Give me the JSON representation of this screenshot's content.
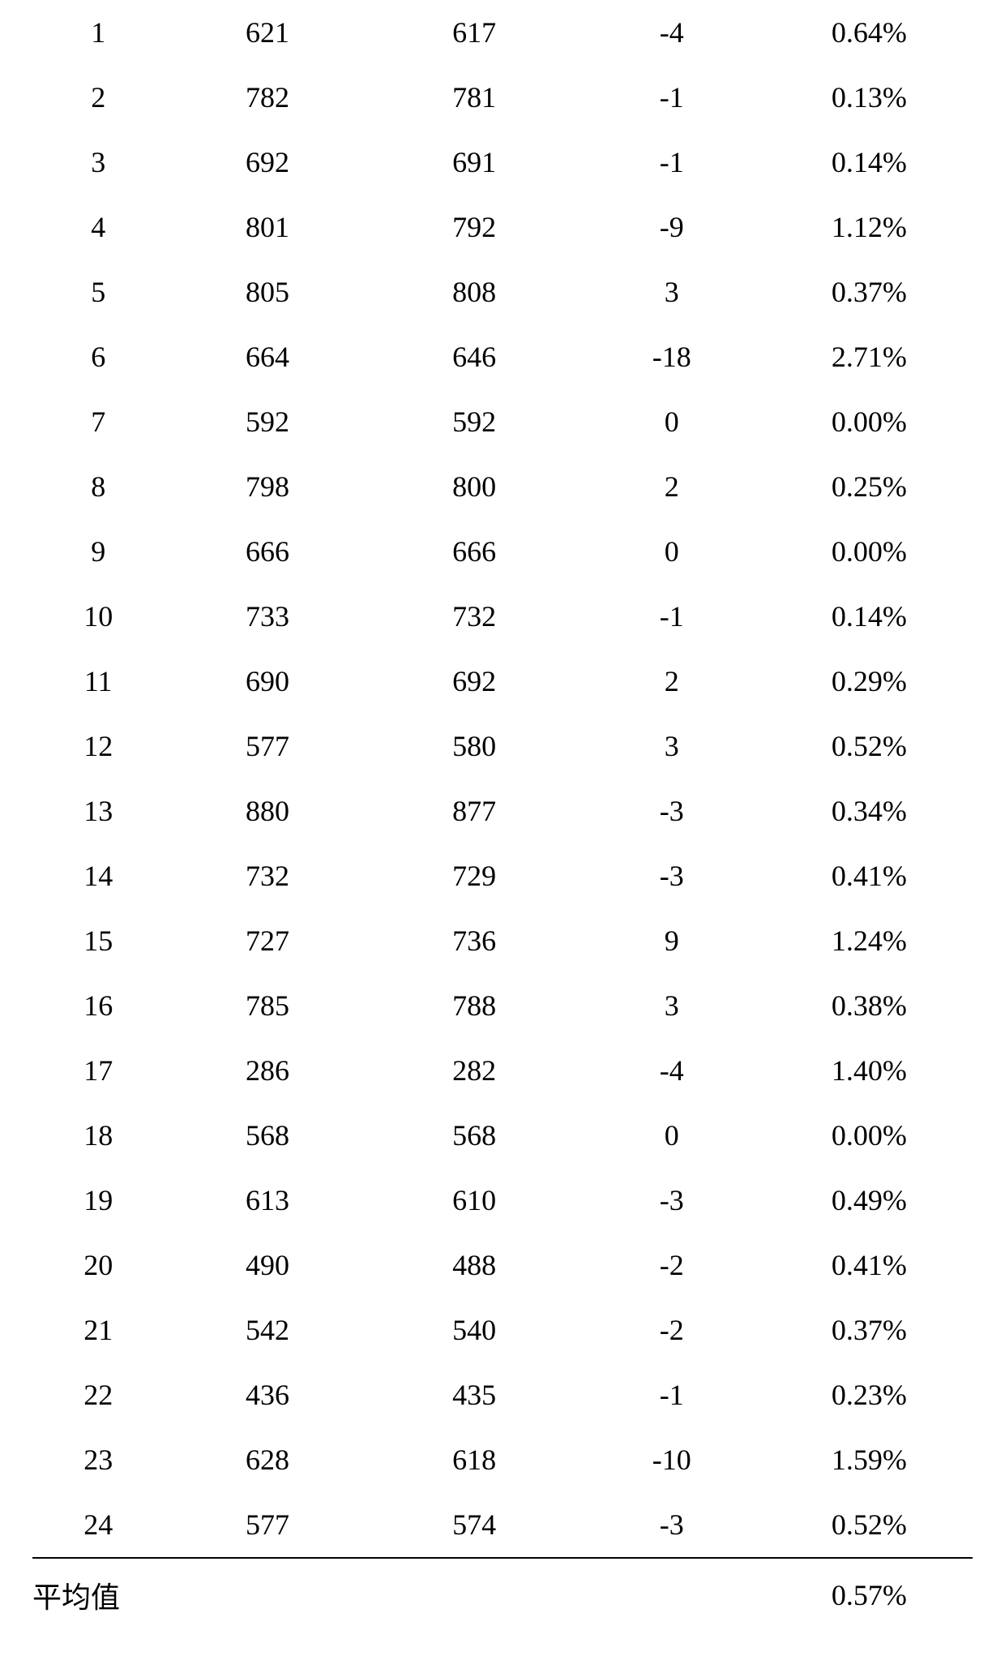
{
  "table": {
    "text_color": "#000000",
    "background_color": "#ffffff",
    "border_color": "#000000",
    "font_size_pt": 27,
    "rows": [
      {
        "idx": "1",
        "a": "621",
        "b": "617",
        "d": "-4",
        "pct": "0.64%"
      },
      {
        "idx": "2",
        "a": "782",
        "b": "781",
        "d": "-1",
        "pct": "0.13%"
      },
      {
        "idx": "3",
        "a": "692",
        "b": "691",
        "d": "-1",
        "pct": "0.14%"
      },
      {
        "idx": "4",
        "a": "801",
        "b": "792",
        "d": "-9",
        "pct": "1.12%"
      },
      {
        "idx": "5",
        "a": "805",
        "b": "808",
        "d": "3",
        "pct": "0.37%"
      },
      {
        "idx": "6",
        "a": "664",
        "b": "646",
        "d": "-18",
        "pct": "2.71%"
      },
      {
        "idx": "7",
        "a": "592",
        "b": "592",
        "d": "0",
        "pct": "0.00%"
      },
      {
        "idx": "8",
        "a": "798",
        "b": "800",
        "d": "2",
        "pct": "0.25%"
      },
      {
        "idx": "9",
        "a": "666",
        "b": "666",
        "d": "0",
        "pct": "0.00%"
      },
      {
        "idx": "10",
        "a": "733",
        "b": "732",
        "d": "-1",
        "pct": "0.14%"
      },
      {
        "idx": "11",
        "a": "690",
        "b": "692",
        "d": "2",
        "pct": "0.29%"
      },
      {
        "idx": "12",
        "a": "577",
        "b": "580",
        "d": "3",
        "pct": "0.52%"
      },
      {
        "idx": "13",
        "a": "880",
        "b": "877",
        "d": "-3",
        "pct": "0.34%"
      },
      {
        "idx": "14",
        "a": "732",
        "b": "729",
        "d": "-3",
        "pct": "0.41%"
      },
      {
        "idx": "15",
        "a": "727",
        "b": "736",
        "d": "9",
        "pct": "1.24%"
      },
      {
        "idx": "16",
        "a": "785",
        "b": "788",
        "d": "3",
        "pct": "0.38%"
      },
      {
        "idx": "17",
        "a": "286",
        "b": "282",
        "d": "-4",
        "pct": "1.40%"
      },
      {
        "idx": "18",
        "a": "568",
        "b": "568",
        "d": "0",
        "pct": "0.00%"
      },
      {
        "idx": "19",
        "a": "613",
        "b": "610",
        "d": "-3",
        "pct": "0.49%"
      },
      {
        "idx": "20",
        "a": "490",
        "b": "488",
        "d": "-2",
        "pct": "0.41%"
      },
      {
        "idx": "21",
        "a": "542",
        "b": "540",
        "d": "-2",
        "pct": "0.37%"
      },
      {
        "idx": "22",
        "a": "436",
        "b": "435",
        "d": "-1",
        "pct": "0.23%"
      },
      {
        "idx": "23",
        "a": "628",
        "b": "618",
        "d": "-10",
        "pct": "1.59%"
      },
      {
        "idx": "24",
        "a": "577",
        "b": "574",
        "d": "-3",
        "pct": "0.52%"
      }
    ],
    "footer": {
      "label": "平均值",
      "pct": "0.57%"
    }
  }
}
